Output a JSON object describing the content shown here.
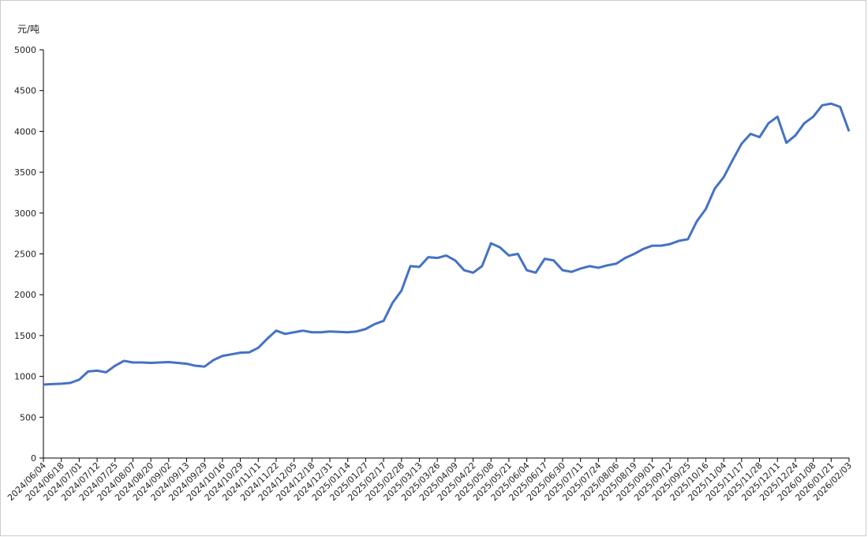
{
  "chart_data": {
    "type": "line",
    "y_label": "元/吨",
    "categories": [
      "2024/06/04",
      null,
      "2024/06/18",
      null,
      "2024/07/01",
      null,
      "2024/07/12",
      null,
      "2024/07/25",
      null,
      "2024/08/07",
      null,
      "2024/08/20",
      null,
      "2024/09/02",
      null,
      "2024/09/13",
      null,
      "2024/09/29",
      null,
      "2024/10/16",
      null,
      "2024/10/29",
      null,
      "2024/11/11",
      null,
      "2024/11/22",
      null,
      "2024/12/05",
      null,
      "2024/12/18",
      null,
      "2024/12/31",
      null,
      "2025/01/14",
      null,
      "2025/01/27",
      null,
      "2025/02/17",
      null,
      "2025/02/28",
      null,
      "2025/03/13",
      null,
      "2025/03/26",
      null,
      "2025/04/09",
      null,
      "2025/04/22",
      null,
      "2025/05/08",
      null,
      "2025/05/21",
      null,
      "2025/06/04",
      null,
      "2025/06/17",
      null,
      "2025/06/30",
      null,
      "2025/07/11",
      null,
      "2025/07/24",
      null,
      "2025/08/06",
      null,
      "2025/08/19",
      null,
      "2025/09/01",
      null,
      "2025/09/12",
      null,
      "2025/09/25",
      null,
      "2025/10/16",
      null,
      "2025/11/04",
      null,
      "2025/11/17",
      null,
      "2025/11/28",
      null,
      "2025/12/11",
      null,
      "2025/12/24",
      null,
      "2026/01/08",
      null,
      "2026/01/21",
      null,
      "2026/02/03"
    ],
    "series": [
      {
        "color": "#4472c4",
        "values": [
          900,
          905,
          910,
          920,
          960,
          1060,
          1070,
          1050,
          1130,
          1190,
          1170,
          1170,
          1165,
          1170,
          1175,
          1165,
          1155,
          1130,
          1120,
          1200,
          1250,
          1270,
          1290,
          1295,
          1350,
          1460,
          1560,
          1520,
          1540,
          1560,
          1540,
          1540,
          1550,
          1545,
          1540,
          1550,
          1580,
          1640,
          1680,
          1900,
          2050,
          2350,
          2340,
          2460,
          2450,
          2480,
          2420,
          2300,
          2270,
          2350,
          2630,
          2580,
          2480,
          2500,
          2300,
          2270,
          2440,
          2420,
          2300,
          2280,
          2320,
          2350,
          2330,
          2360,
          2380,
          2450,
          2500,
          2560,
          2600,
          2600,
          2620,
          2660,
          2680,
          2900,
          3050,
          3300,
          3440,
          3650,
          3850,
          3970,
          3930,
          4100,
          4180,
          3860,
          3950,
          4100,
          4180,
          4320,
          4340,
          4300,
          4000
        ]
      }
    ],
    "ylim": [
      0,
      5000
    ],
    "yticks": [
      0,
      500,
      1000,
      1500,
      2000,
      2500,
      3000,
      3500,
      4000,
      4500,
      5000
    ]
  }
}
